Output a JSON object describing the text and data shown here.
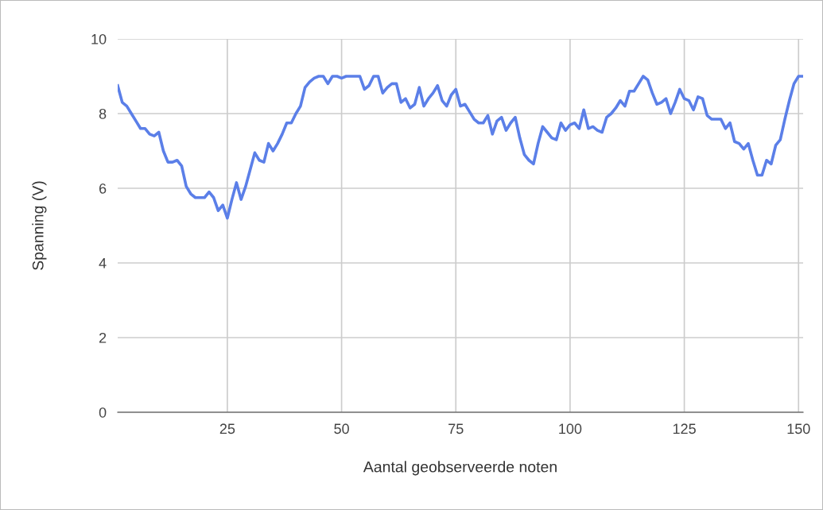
{
  "chart_data": {
    "type": "line",
    "xlabel": "Aantal geobserveerde noten",
    "ylabel": "Spanning (V)",
    "x": [
      1,
      2,
      3,
      4,
      5,
      6,
      7,
      8,
      9,
      10,
      11,
      12,
      13,
      14,
      15,
      16,
      17,
      18,
      19,
      20,
      21,
      22,
      23,
      24,
      25,
      26,
      27,
      28,
      29,
      30,
      31,
      32,
      33,
      34,
      35,
      36,
      37,
      38,
      39,
      40,
      41,
      42,
      43,
      44,
      45,
      46,
      47,
      48,
      49,
      50,
      51,
      52,
      53,
      54,
      55,
      56,
      57,
      58,
      59,
      60,
      61,
      62,
      63,
      64,
      65,
      66,
      67,
      68,
      69,
      70,
      71,
      72,
      73,
      74,
      75,
      76,
      77,
      78,
      79,
      80,
      81,
      82,
      83,
      84,
      85,
      86,
      87,
      88,
      89,
      90,
      91,
      92,
      93,
      94,
      95,
      96,
      97,
      98,
      99,
      100,
      101,
      102,
      103,
      104,
      105,
      106,
      107,
      108,
      109,
      110,
      111,
      112,
      113,
      114,
      115,
      116,
      117,
      118,
      119,
      120,
      121,
      122,
      123,
      124,
      125,
      126,
      127,
      128,
      129,
      130,
      131,
      132,
      133,
      134,
      135,
      136,
      137,
      138,
      139,
      140,
      141,
      142,
      143,
      144,
      145,
      146,
      147,
      148,
      149,
      150,
      151
    ],
    "series": [
      {
        "color": "#5b7fe8",
        "values": [
          8.75,
          8.3,
          8.2,
          8.0,
          7.8,
          7.6,
          7.6,
          7.45,
          7.4,
          7.5,
          7.0,
          6.7,
          6.7,
          6.75,
          6.6,
          6.05,
          5.85,
          5.75,
          5.75,
          5.75,
          5.9,
          5.75,
          5.4,
          5.55,
          5.2,
          5.7,
          6.15,
          5.7,
          6.05,
          6.5,
          6.95,
          6.75,
          6.7,
          7.2,
          7.0,
          7.2,
          7.45,
          7.75,
          7.75,
          8.0,
          8.2,
          8.7,
          8.85,
          8.95,
          9.0,
          9.0,
          8.8,
          9.0,
          9.0,
          8.95,
          9.0,
          9.0,
          9.0,
          9.0,
          8.65,
          8.75,
          9.0,
          9.0,
          8.55,
          8.7,
          8.8,
          8.8,
          8.3,
          8.4,
          8.15,
          8.25,
          8.7,
          8.2,
          8.4,
          8.55,
          8.75,
          8.35,
          8.2,
          8.5,
          8.65,
          8.2,
          8.25,
          8.05,
          7.85,
          7.75,
          7.75,
          7.95,
          7.45,
          7.8,
          7.9,
          7.55,
          7.75,
          7.9,
          7.35,
          6.9,
          6.75,
          6.65,
          7.2,
          7.65,
          7.5,
          7.35,
          7.3,
          7.75,
          7.55,
          7.7,
          7.75,
          7.6,
          8.1,
          7.6,
          7.65,
          7.55,
          7.5,
          7.9,
          8.0,
          8.15,
          8.35,
          8.2,
          8.6,
          8.6,
          8.8,
          9.0,
          8.9,
          8.55,
          8.25,
          8.3,
          8.4,
          8.0,
          8.3,
          8.65,
          8.4,
          8.35,
          8.1,
          8.45,
          8.4,
          7.95,
          7.85,
          7.85,
          7.85,
          7.6,
          7.75,
          7.25,
          7.2,
          7.05,
          7.2,
          6.75,
          6.35,
          6.35,
          6.75,
          6.65,
          7.15,
          7.3,
          7.85,
          8.35,
          8.8,
          9.0,
          9.0
        ]
      }
    ],
    "xlim": [
      1,
      151
    ],
    "ylim": [
      0,
      10
    ],
    "xticks": [
      25,
      50,
      75,
      100,
      125,
      150
    ],
    "yticks": [
      0,
      2,
      4,
      6,
      8,
      10
    ],
    "grid": true,
    "marker": "none",
    "line_style": "solid"
  }
}
